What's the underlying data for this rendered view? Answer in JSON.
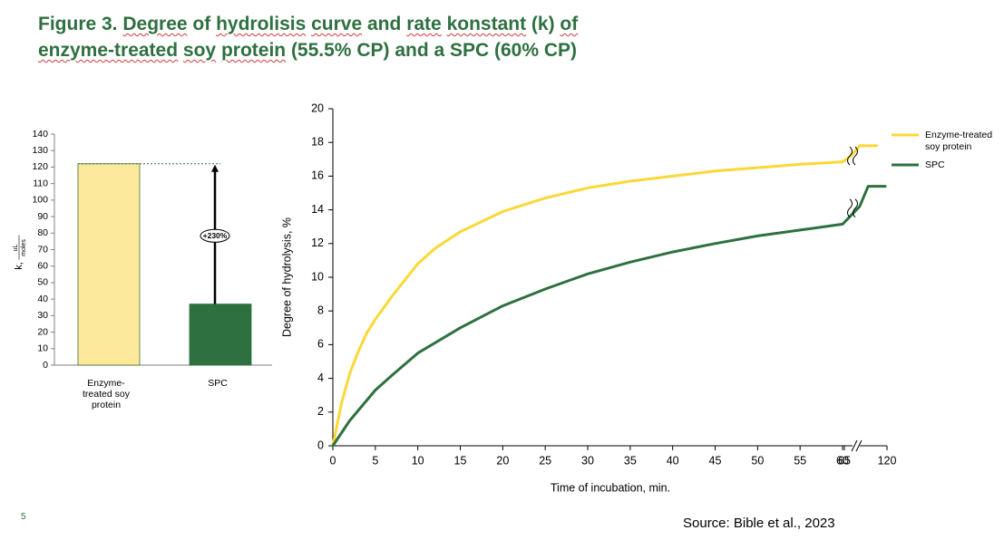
{
  "title": {
    "fig_label": "Figure 3.",
    "line1_segments": [
      {
        "t": "Degree",
        "u": true
      },
      {
        "t": " of ",
        "u": false
      },
      {
        "t": "hydrolisis",
        "u": true
      },
      {
        "t": " ",
        "u": false
      },
      {
        "t": "curve",
        "u": true
      },
      {
        "t": " and ",
        "u": false
      },
      {
        "t": "rate",
        "u": true
      },
      {
        "t": " ",
        "u": false
      },
      {
        "t": "konstant",
        "u": true
      },
      {
        "t": " (k) ",
        "u": false
      },
      {
        "t": "of",
        "u": true
      }
    ],
    "line2_segments": [
      {
        "t": "enzyme-treated",
        "u": true
      },
      {
        "t": " ",
        "u": false
      },
      {
        "t": "soy",
        "u": true
      },
      {
        "t": " ",
        "u": false
      },
      {
        "t": "protein",
        "u": true
      },
      {
        "t": " (55.5% CP) and a SPC (60% CP)",
        "u": false
      }
    ]
  },
  "page_number": "5",
  "source": "Source: Bible et al., 2023",
  "colors": {
    "title": "#2e7040",
    "enzyme": "#fbd837",
    "enzyme_bar": "#fde99b",
    "spc": "#2e7040"
  },
  "chart_data": [
    {
      "type": "bar",
      "categories": [
        "Enzyme-treated soy protein",
        "SPC"
      ],
      "category_label_lines": [
        [
          "Enzyme-",
          "treated soy",
          "protein"
        ],
        [
          "SPC"
        ]
      ],
      "values": [
        122,
        37
      ],
      "ylim": [
        0,
        140
      ],
      "yticks": [
        0,
        10,
        20,
        30,
        40,
        50,
        60,
        70,
        80,
        90,
        100,
        110,
        120,
        130,
        140
      ],
      "ylabel_prefix": "k,",
      "ylabel_num": "uL",
      "ylabel_den": "moles",
      "annotation": "+230%",
      "grid": false
    },
    {
      "type": "line",
      "xlabel": "Time of incubation, min.",
      "ylabel": "Degree of hydrolysis, %",
      "ylim": [
        0,
        20
      ],
      "yticks": [
        0,
        2,
        4,
        6,
        8,
        10,
        12,
        14,
        16,
        18,
        20
      ],
      "xticks": [
        "0",
        "5",
        "10",
        "15",
        "20",
        "25",
        "30",
        "35",
        "40",
        "45",
        "50",
        "55",
        "60",
        "65",
        "120"
      ],
      "x_break": "between 60 and 120",
      "grid": false,
      "legend_position": "right",
      "series": [
        {
          "name": "Enzyme-treated soy protein",
          "legend_lines": [
            "Enzyme-treated",
            "soy protein"
          ],
          "color": "#fbd837",
          "points": [
            [
              0,
              0
            ],
            [
              1,
              2.5
            ],
            [
              2,
              4.3
            ],
            [
              3,
              5.6
            ],
            [
              4,
              6.7
            ],
            [
              5,
              7.5
            ],
            [
              7,
              8.9
            ],
            [
              10,
              10.8
            ],
            [
              12,
              11.7
            ],
            [
              15,
              12.7
            ],
            [
              20,
              13.9
            ],
            [
              25,
              14.7
            ],
            [
              30,
              15.3
            ],
            [
              35,
              15.7
            ],
            [
              40,
              16.0
            ],
            [
              45,
              16.3
            ],
            [
              50,
              16.5
            ],
            [
              55,
              16.7
            ],
            [
              60,
              16.85
            ],
            [
              61,
              17.2
            ],
            [
              62,
              17.8
            ],
            [
              64,
              17.8
            ]
          ]
        },
        {
          "name": "SPC",
          "legend_lines": [
            "SPC"
          ],
          "color": "#2e7040",
          "points": [
            [
              0,
              0
            ],
            [
              2,
              1.5
            ],
            [
              5,
              3.3
            ],
            [
              7,
              4.2
            ],
            [
              10,
              5.5
            ],
            [
              15,
              7.0
            ],
            [
              20,
              8.3
            ],
            [
              25,
              9.3
            ],
            [
              30,
              10.2
            ],
            [
              35,
              10.9
            ],
            [
              40,
              11.5
            ],
            [
              45,
              12.0
            ],
            [
              50,
              12.45
            ],
            [
              55,
              12.8
            ],
            [
              60,
              13.15
            ],
            [
              62,
              14.2
            ],
            [
              63,
              15.4
            ],
            [
              65,
              15.4
            ]
          ]
        }
      ]
    }
  ]
}
